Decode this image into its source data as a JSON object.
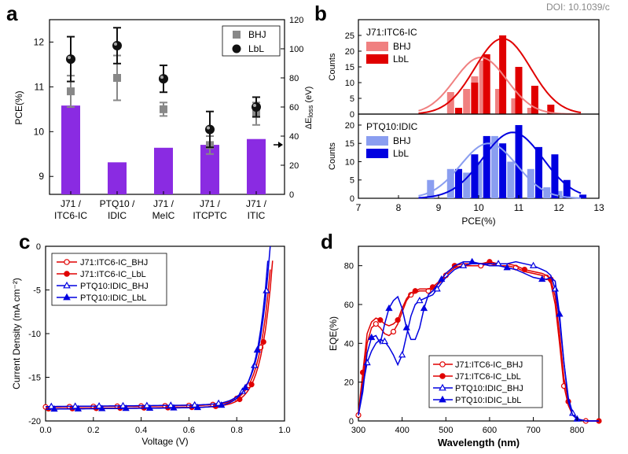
{
  "doi": "DOI: 10.1039/c",
  "colors": {
    "purple": "#8a2be2",
    "gray": "#888888",
    "black": "#111111",
    "red_light": "#f08080",
    "red": "#e00000",
    "blue_light": "#8a9ef0",
    "blue": "#0000e0"
  },
  "panel_labels": {
    "a": "a",
    "b": "b",
    "c": "c",
    "d": "d"
  },
  "chart_data": [
    {
      "panel": "a",
      "type": "bar",
      "categories": [
        [
          "J71 /",
          "ITC6-IC"
        ],
        [
          "PTQ10 /",
          "IDIC"
        ],
        [
          "J71 /",
          "MeIC"
        ],
        [
          "J71 /",
          "ITCPTC"
        ],
        [
          "J71 /",
          "ITIC"
        ]
      ],
      "left_axis": {
        "label": "PCE(%)",
        "ylim": [
          8.6,
          12.5
        ],
        "ticks": [
          "9",
          "10",
          "11",
          "12"
        ],
        "tick_values": [
          9,
          10,
          11,
          12
        ]
      },
      "right_axis": {
        "label": "ΔE",
        "label_sub": "loss",
        "label_unit": "(eV)",
        "ylim": [
          0,
          120
        ],
        "ticks": [
          "0",
          "20",
          "40",
          "60",
          "80",
          "100",
          "120"
        ],
        "tick_values": [
          0,
          20,
          40,
          60,
          80,
          100,
          120
        ]
      },
      "bars_eloss": [
        61,
        22,
        32,
        34,
        38
      ],
      "bhj_pce": [
        10.9,
        11.2,
        10.5,
        9.7,
        10.4
      ],
      "bhj_err": [
        0.35,
        0.5,
        0.15,
        0.2,
        0.25
      ],
      "lbl_pce": [
        11.62,
        11.92,
        11.18,
        10.05,
        10.55
      ],
      "lbl_err": [
        0.5,
        0.4,
        0.3,
        0.4,
        0.22
      ],
      "legend": {
        "bhj": "BHJ",
        "lbl": "LbL"
      }
    },
    {
      "panel": "b",
      "type": "bar",
      "xlabel": "PCE(%)",
      "xlim": [
        7,
        13
      ],
      "xticks": [
        "7",
        "8",
        "9",
        "10",
        "11",
        "12",
        "13"
      ],
      "xtick_values": [
        7,
        8,
        9,
        10,
        11,
        12,
        13
      ],
      "top": {
        "title": "J71:ITC6-IC",
        "ylabel": "Counts",
        "ylim": [
          0,
          30
        ],
        "yticks": [
          "0",
          "5",
          "10",
          "15",
          "20",
          "25"
        ],
        "ytick_values": [
          0,
          5,
          10,
          15,
          20,
          25
        ],
        "bhj": {
          "x": [
            9.3,
            9.7,
            9.9,
            10.1,
            10.5,
            10.9,
            11.3
          ],
          "counts": [
            7,
            8,
            12,
            17,
            8,
            5,
            2
          ]
        },
        "lbl": {
          "x": [
            9.5,
            9.9,
            10.2,
            10.6,
            11.0,
            11.4,
            11.8
          ],
          "counts": [
            2,
            10,
            19,
            25,
            15,
            9,
            3
          ]
        },
        "fit_bhj": {
          "mean": 10.05,
          "sd": 0.65,
          "peak": 18
        },
        "fit_lbl": {
          "mean": 10.6,
          "sd": 0.7,
          "peak": 24
        },
        "legend": {
          "bhj": "BHJ",
          "lbl": "LbL"
        }
      },
      "bottom": {
        "title": "PTQ10:IDIC",
        "ylabel": "Counts",
        "ylim": [
          0,
          23
        ],
        "yticks": [
          "0",
          "5",
          "10",
          "15",
          "20"
        ],
        "ytick_values": [
          0,
          5,
          10,
          15,
          20
        ],
        "bhj": {
          "x": [
            8.8,
            9.3,
            9.7,
            10.0,
            10.4,
            10.8,
            11.3,
            11.7,
            12.0
          ],
          "counts": [
            5,
            8,
            7,
            10,
            17,
            10,
            8,
            3,
            2
          ]
        },
        "lbl": {
          "x": [
            9.5,
            9.9,
            10.2,
            10.6,
            11.0,
            11.5,
            11.9,
            12.2,
            12.6
          ],
          "counts": [
            8,
            12,
            17,
            15,
            20,
            14,
            12,
            5,
            1
          ]
        },
        "fit_bhj": {
          "mean": 10.25,
          "sd": 0.7,
          "peak": 15
        },
        "fit_lbl": {
          "mean": 10.85,
          "sd": 0.75,
          "peak": 18
        },
        "legend": {
          "bhj": "BHJ",
          "lbl": "LbL"
        }
      }
    },
    {
      "panel": "c",
      "type": "line",
      "xlabel": "Voltage (V)",
      "ylabel": "Current Density (mA cm⁻²)",
      "xlim": [
        0,
        1
      ],
      "ylim": [
        -20,
        0
      ],
      "xticks": [
        "0.0",
        "0.2",
        "0.4",
        "0.6",
        "0.8",
        "1.0"
      ],
      "xtick_values": [
        0,
        0.2,
        0.4,
        0.6,
        0.8,
        1.0
      ],
      "yticks": [
        "0",
        "-5",
        "-10",
        "-15",
        "-20"
      ],
      "ytick_values": [
        0,
        -5,
        -10,
        -15,
        -20
      ],
      "series": [
        {
          "name": "J71:ITC6-IC_BHJ",
          "color": "#e00000",
          "marker": "open-circle",
          "voc": 0.948,
          "jsc": 18.4
        },
        {
          "name": "J71:ITC6-IC_LbL",
          "color": "#e00000",
          "marker": "filled-circle",
          "voc": 0.955,
          "jsc": 18.6
        },
        {
          "name": "PTQ10:IDIC_BHJ",
          "color": "#0000e0",
          "marker": "open-triangle",
          "voc": 0.94,
          "jsc": 18.35
        },
        {
          "name": "PTQ10:IDIC_LbL",
          "color": "#0000e0",
          "marker": "filled-triangle",
          "voc": 0.935,
          "jsc": 18.65
        }
      ]
    },
    {
      "panel": "d",
      "type": "line",
      "xlabel": "Wavelength (nm)",
      "ylabel": "EQE(%)",
      "xlim": [
        300,
        850
      ],
      "ylim": [
        0,
        90
      ],
      "xticks": [
        "300",
        "400",
        "500",
        "600",
        "700",
        "800"
      ],
      "xtick_values": [
        300,
        400,
        500,
        600,
        700,
        800
      ],
      "yticks": [
        "0",
        "20",
        "40",
        "60",
        "80"
      ],
      "ytick_values": [
        0,
        20,
        40,
        60,
        80
      ],
      "series": [
        {
          "name": "J71:ITC6-IC_BHJ",
          "color": "#e00000",
          "marker": "open-circle",
          "x": [
            300,
            310,
            320,
            330,
            340,
            350,
            360,
            370,
            380,
            390,
            400,
            410,
            420,
            430,
            440,
            450,
            460,
            470,
            480,
            490,
            500,
            520,
            540,
            560,
            580,
            600,
            620,
            640,
            660,
            680,
            700,
            720,
            730,
            740,
            750,
            760,
            770,
            780,
            790,
            800,
            820,
            850
          ],
          "y": [
            3,
            20,
            40,
            48,
            50,
            48,
            45,
            44,
            46,
            50,
            56,
            62,
            65,
            66,
            67,
            67,
            67,
            68,
            70,
            72,
            75,
            79,
            80,
            80,
            80,
            81,
            80,
            80,
            79,
            77,
            76,
            75,
            74,
            71,
            60,
            40,
            18,
            8,
            3,
            1,
            0,
            0
          ]
        },
        {
          "name": "J71:ITC6-IC_LbL",
          "color": "#e00000",
          "marker": "filled-circle",
          "x": [
            300,
            310,
            320,
            330,
            340,
            350,
            360,
            370,
            380,
            390,
            400,
            410,
            420,
            430,
            440,
            450,
            460,
            470,
            480,
            490,
            500,
            520,
            540,
            560,
            580,
            600,
            620,
            640,
            660,
            680,
            700,
            720,
            730,
            740,
            750,
            760,
            770,
            780,
            790,
            800,
            820,
            850
          ],
          "y": [
            4,
            25,
            45,
            51,
            53,
            52,
            50,
            49,
            50,
            52,
            58,
            63,
            66,
            67,
            68,
            68,
            68,
            69,
            71,
            73,
            76,
            80,
            81,
            81,
            81,
            82,
            81,
            81,
            80,
            78,
            77,
            76,
            75,
            73,
            64,
            45,
            22,
            10,
            4,
            1,
            0,
            0
          ]
        },
        {
          "name": "PTQ10:IDIC_BHJ",
          "color": "#0000e0",
          "marker": "open-triangle",
          "x": [
            300,
            310,
            320,
            330,
            340,
            350,
            360,
            370,
            380,
            390,
            400,
            410,
            420,
            430,
            440,
            450,
            460,
            470,
            480,
            490,
            500,
            520,
            540,
            560,
            580,
            600,
            620,
            640,
            660,
            680,
            700,
            720,
            730,
            740,
            750,
            760,
            770,
            780,
            790,
            800,
            820,
            850
          ],
          "y": [
            3,
            18,
            30,
            36,
            40,
            42,
            41,
            38,
            34,
            29,
            34,
            44,
            54,
            60,
            62,
            63,
            64,
            65,
            68,
            71,
            74,
            78,
            80,
            81,
            81,
            81,
            81,
            81,
            82,
            81,
            80,
            78,
            77,
            75,
            68,
            52,
            30,
            12,
            4,
            1,
            0,
            0
          ]
        },
        {
          "name": "PTQ10:IDIC_LbL",
          "color": "#0000e0",
          "marker": "filled-triangle",
          "x": [
            300,
            310,
            320,
            330,
            340,
            350,
            360,
            370,
            380,
            390,
            400,
            410,
            420,
            430,
            440,
            450,
            460,
            470,
            480,
            490,
            500,
            520,
            540,
            560,
            580,
            600,
            620,
            640,
            660,
            680,
            700,
            720,
            730,
            740,
            750,
            760,
            770,
            780,
            790,
            800,
            820,
            850
          ],
          "y": [
            3,
            15,
            35,
            43,
            44,
            40,
            50,
            58,
            62,
            64,
            58,
            48,
            42,
            42,
            48,
            58,
            65,
            67,
            70,
            73,
            76,
            80,
            82,
            82,
            81,
            80,
            80,
            79,
            78,
            76,
            74,
            73,
            73,
            74,
            72,
            55,
            30,
            10,
            3,
            1,
            0,
            0
          ]
        }
      ]
    }
  ]
}
